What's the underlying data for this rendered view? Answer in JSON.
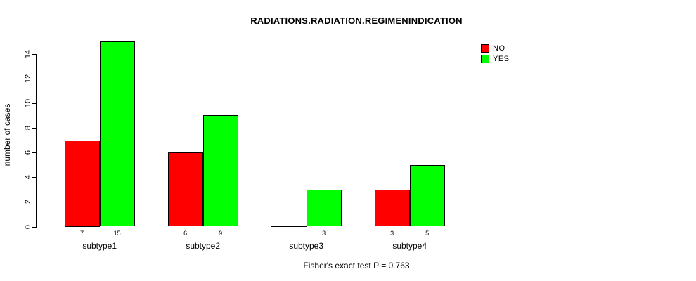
{
  "title": "RADIATIONS.RADIATION.REGIMENINDICATION",
  "footer": "Fisher's exact test P = 0.763",
  "colors": {
    "no": "#ff0000",
    "yes": "#00ff00",
    "axis": "#000000",
    "text": "#000000",
    "background": "#ffffff"
  },
  "legend": {
    "items": [
      {
        "label": "NO",
        "color": "#ff0000"
      },
      {
        "label": "YES",
        "color": "#00ff00"
      }
    ]
  },
  "chart_data": {
    "type": "bar",
    "title": "RADIATIONS.RADIATION.REGIMENINDICATION",
    "xlabel": "",
    "ylabel": "number of cases",
    "categories": [
      "subtype1",
      "subtype2",
      "subtype3",
      "subtype4"
    ],
    "series": [
      {
        "name": "NO",
        "color": "#ff0000",
        "values": [
          7,
          6,
          0,
          3
        ],
        "value_labels": [
          "7",
          "6",
          "",
          "3"
        ]
      },
      {
        "name": "YES",
        "color": "#00ff00",
        "values": [
          15,
          9,
          3,
          5
        ],
        "value_labels": [
          "15",
          "9",
          "3",
          "5"
        ]
      }
    ],
    "ylim": [
      0,
      14
    ],
    "yticks": [
      0,
      2,
      4,
      6,
      8,
      10,
      12,
      14
    ],
    "grid": false,
    "legend_position": "top-right-inside",
    "annotation": "Fisher's exact test P = 0.763"
  }
}
